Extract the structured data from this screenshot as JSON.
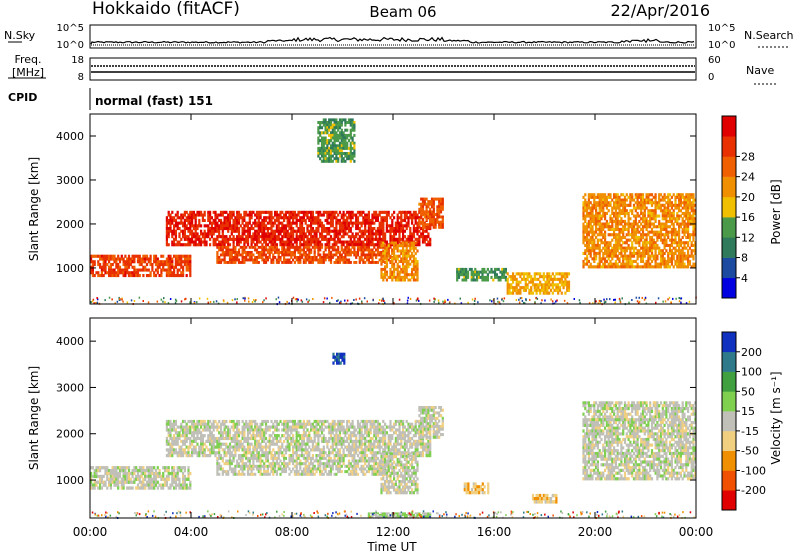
{
  "header": {
    "radar": "Hokkaido (fitACF)",
    "beam": "Beam 06",
    "date": "22/Apr/2016"
  },
  "noise_panel": {
    "left_label": "N.Sky",
    "right_label": "N.Search",
    "yticks_left": [
      "10^5",
      "10^0"
    ],
    "yticks_right": [
      "10^5",
      "10^0"
    ]
  },
  "freq_panel": {
    "left_label_1": "Freq.",
    "left_label_2": "[MHz]",
    "right_label": "Nave",
    "yticks_left": [
      "18",
      "8"
    ],
    "yticks_right": [
      "60",
      "0"
    ]
  },
  "cpid_panel": {
    "label": "CPID",
    "text": "normal (fast) 151"
  },
  "x_axis": {
    "label": "Time UT",
    "ticks": [
      "00:00",
      "04:00",
      "08:00",
      "12:00",
      "16:00",
      "20:00",
      "00:00"
    ]
  },
  "power_panel": {
    "ylabel": "Slant Range [km]",
    "yticks": [
      "1000",
      "2000",
      "3000",
      "4000"
    ],
    "colorbar_label": "Power [dB]",
    "colorbar_ticks": [
      "4",
      "8",
      "12",
      "16",
      "20",
      "24",
      "28"
    ],
    "colors": [
      "#0000e0",
      "#1c4aa0",
      "#2f7a5a",
      "#4a9a4a",
      "#f0c000",
      "#f09000",
      "#f06000",
      "#e83000",
      "#e00000"
    ]
  },
  "velocity_panel": {
    "ylabel": "Slant Range [km]",
    "yticks": [
      "1000",
      "2000",
      "3000",
      "4000"
    ],
    "colorbar_label": "Velocity [m s⁻¹]",
    "colorbar_ticks": [
      "-200",
      "-100",
      "-50",
      "-15",
      "15",
      "50",
      "100",
      "200"
    ],
    "colors": [
      "#e00000",
      "#f05000",
      "#f09000",
      "#f0d080",
      "#c0c0b8",
      "#80d050",
      "#40a040",
      "#2f7a8a",
      "#1030c0"
    ]
  },
  "chart_data": [
    {
      "type": "line",
      "title": "N.Sky / N.Search",
      "x": [
        "00:00",
        "04:00",
        "08:00",
        "12:00",
        "16:00",
        "20:00",
        "00:00"
      ],
      "series": [
        {
          "name": "N.Sky",
          "values": [
            1.2,
            1.5,
            2.0,
            3.0,
            2.0,
            1.5,
            1.2
          ]
        },
        {
          "name": "N.Search",
          "values": [
            0.6,
            0.6,
            0.6,
            0.6,
            0.6,
            0.6,
            0.6
          ]
        }
      ]
    },
    {
      "type": "line",
      "title": "Freq. / Nave",
      "x": [
        "00:00",
        "04:00",
        "08:00",
        "12:00",
        "16:00",
        "20:00",
        "00:00"
      ],
      "series": [
        {
          "name": "Freq.",
          "values": [
            10.6,
            10.6,
            10.6,
            10.6,
            10.6,
            10.6,
            10.6
          ]
        },
        {
          "name": "Nave",
          "values": [
            20,
            20,
            20,
            20,
            20,
            20,
            20
          ]
        }
      ]
    },
    {
      "type": "heatmap",
      "title": "Power [dB]",
      "xlabel": "Time UT",
      "ylabel": "Slant Range [km]",
      "xlim": [
        0,
        24
      ],
      "ylim": [
        180,
        4500
      ],
      "clim": [
        0,
        32
      ],
      "regions": [
        {
          "t0": 0.0,
          "t1": 4.0,
          "r0": 800,
          "r1": 1300,
          "value": 26
        },
        {
          "t0": 3.0,
          "t1": 13.5,
          "r0": 1500,
          "r1": 2300,
          "value": 28
        },
        {
          "t0": 5.0,
          "t1": 12.0,
          "r0": 1100,
          "r1": 1500,
          "value": 25
        },
        {
          "t0": 13.0,
          "t1": 14.0,
          "r0": 1900,
          "r1": 2600,
          "value": 24
        },
        {
          "t0": 11.5,
          "t1": 13.0,
          "r0": 700,
          "r1": 1600,
          "value": 20
        },
        {
          "t0": 14.5,
          "t1": 16.5,
          "r0": 700,
          "r1": 1000,
          "value": 12
        },
        {
          "t0": 16.5,
          "t1": 19.0,
          "r0": 400,
          "r1": 900,
          "value": 18
        },
        {
          "t0": 19.5,
          "t1": 24.0,
          "r0": 1000,
          "r1": 2700,
          "value": 20
        },
        {
          "t0": 9.0,
          "t1": 10.5,
          "r0": 3400,
          "r1": 4400,
          "value": 12
        }
      ]
    },
    {
      "type": "heatmap",
      "title": "Velocity [m s⁻¹]",
      "xlabel": "Time UT",
      "ylabel": "Slant Range [km]",
      "xlim": [
        0,
        24
      ],
      "ylim": [
        180,
        4500
      ],
      "clim": [
        -250,
        250
      ],
      "regions": [
        {
          "t0": 0.0,
          "t1": 4.0,
          "r0": 800,
          "r1": 1300,
          "value": 0
        },
        {
          "t0": 3.0,
          "t1": 13.5,
          "r0": 1500,
          "r1": 2300,
          "value": 0
        },
        {
          "t0": 5.0,
          "t1": 12.0,
          "r0": 1100,
          "r1": 1500,
          "value": 0
        },
        {
          "t0": 13.0,
          "t1": 14.0,
          "r0": 1900,
          "r1": 2600,
          "value": 0
        },
        {
          "t0": 11.5,
          "t1": 13.0,
          "r0": 700,
          "r1": 1600,
          "value": 0
        },
        {
          "t0": 14.8,
          "t1": 15.8,
          "r0": 700,
          "r1": 950,
          "value": -60
        },
        {
          "t0": 17.5,
          "t1": 18.5,
          "r0": 500,
          "r1": 700,
          "value": -60
        },
        {
          "t0": 19.5,
          "t1": 24.0,
          "r0": 1000,
          "r1": 2700,
          "value": 0
        },
        {
          "t0": 9.6,
          "t1": 10.1,
          "r0": 3500,
          "r1": 3750,
          "value": 220
        },
        {
          "t0": 11.0,
          "t1": 13.5,
          "r0": 200,
          "r1": 300,
          "value": 40
        }
      ]
    }
  ]
}
